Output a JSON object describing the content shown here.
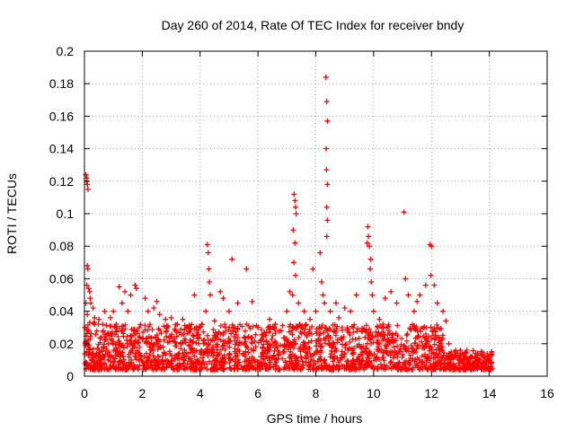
{
  "chart_data": {
    "type": "scatter",
    "title": "Day 260 of 2014, Rate Of TEC Index for receiver bndy",
    "xlabel": "GPS time / hours",
    "ylabel": "ROTI / TECUs",
    "xlim": [
      0,
      16
    ],
    "ylim": [
      0,
      0.2
    ],
    "grid": true,
    "marker": "+",
    "color": "#ff0000",
    "x_ticks": [
      0,
      2,
      4,
      6,
      8,
      10,
      12,
      14,
      16
    ],
    "y_ticks": [
      0,
      0.02,
      0.04,
      0.06,
      0.08,
      0.1,
      0.12,
      0.14,
      0.16,
      0.18,
      0.2
    ],
    "x_tick_labels": [
      "0",
      "2",
      "4",
      "6",
      "8",
      "10",
      "12",
      "14",
      "16"
    ],
    "y_tick_labels": [
      "0",
      "0.02",
      "0.04",
      "0.06",
      "0.08",
      "0.1",
      "0.12",
      "0.14",
      "0.16",
      "0.18",
      "0.2"
    ],
    "series": [
      {
        "name": "ROTI",
        "points": [
          [
            0.05,
            0.124
          ],
          [
            0.08,
            0.122
          ],
          [
            0.1,
            0.118
          ],
          [
            0.12,
            0.115
          ],
          [
            0.07,
            0.12
          ],
          [
            0.1,
            0.068
          ],
          [
            0.12,
            0.066
          ],
          [
            0.08,
            0.056
          ],
          [
            0.15,
            0.054
          ],
          [
            0.18,
            0.052
          ],
          [
            0.2,
            0.048
          ],
          [
            0.22,
            0.045
          ],
          [
            0.05,
            0.045
          ],
          [
            0.1,
            0.038
          ],
          [
            0.3,
            0.042
          ],
          [
            0.35,
            0.036
          ],
          [
            0.02,
            0.03
          ],
          [
            0.15,
            0.028
          ],
          [
            0.5,
            0.035
          ],
          [
            0.7,
            0.04
          ],
          [
            0.9,
            0.036
          ],
          [
            1.1,
            0.032
          ],
          [
            1.3,
            0.045
          ],
          [
            1.5,
            0.04
          ],
          [
            1.75,
            0.056
          ],
          [
            1.8,
            0.054
          ],
          [
            1.6,
            0.05
          ],
          [
            1.4,
            0.052
          ],
          [
            1.2,
            0.055
          ],
          [
            1.0,
            0.04
          ],
          [
            2.1,
            0.048
          ],
          [
            2.2,
            0.04
          ],
          [
            2.4,
            0.042
          ],
          [
            2.5,
            0.046
          ],
          [
            2.6,
            0.038
          ],
          [
            2.8,
            0.035
          ],
          [
            3.0,
            0.036
          ],
          [
            3.2,
            0.032
          ],
          [
            3.4,
            0.035
          ],
          [
            3.6,
            0.03
          ],
          [
            3.8,
            0.05
          ],
          [
            4.0,
            0.03
          ],
          [
            4.25,
            0.081
          ],
          [
            4.28,
            0.076
          ],
          [
            4.3,
            0.066
          ],
          [
            4.32,
            0.058
          ],
          [
            4.35,
            0.05
          ],
          [
            4.2,
            0.04
          ],
          [
            4.5,
            0.034
          ],
          [
            4.7,
            0.052
          ],
          [
            4.8,
            0.048
          ],
          [
            5.0,
            0.04
          ],
          [
            5.1,
            0.072
          ],
          [
            5.3,
            0.045
          ],
          [
            5.6,
            0.066
          ],
          [
            5.8,
            0.046
          ],
          [
            6.0,
            0.03
          ],
          [
            6.2,
            0.025
          ],
          [
            6.4,
            0.035
          ],
          [
            6.6,
            0.032
          ],
          [
            6.8,
            0.028
          ],
          [
            7.0,
            0.04
          ],
          [
            7.1,
            0.052
          ],
          [
            7.2,
            0.05
          ],
          [
            7.25,
            0.112
          ],
          [
            7.28,
            0.108
          ],
          [
            7.3,
            0.104
          ],
          [
            7.32,
            0.1
          ],
          [
            7.22,
            0.09
          ],
          [
            7.28,
            0.082
          ],
          [
            7.24,
            0.07
          ],
          [
            7.3,
            0.062
          ],
          [
            7.4,
            0.045
          ],
          [
            7.6,
            0.04
          ],
          [
            7.8,
            0.035
          ],
          [
            7.9,
            0.066
          ],
          [
            8.0,
            0.04
          ],
          [
            8.15,
            0.076
          ],
          [
            8.2,
            0.058
          ],
          [
            8.25,
            0.05
          ],
          [
            8.3,
            0.045
          ],
          [
            8.35,
            0.184
          ],
          [
            8.38,
            0.169
          ],
          [
            8.4,
            0.157
          ],
          [
            8.36,
            0.14
          ],
          [
            8.37,
            0.127
          ],
          [
            8.4,
            0.118
          ],
          [
            8.38,
            0.104
          ],
          [
            8.4,
            0.096
          ],
          [
            8.38,
            0.086
          ],
          [
            8.5,
            0.04
          ],
          [
            8.7,
            0.045
          ],
          [
            8.8,
            0.036
          ],
          [
            9.0,
            0.042
          ],
          [
            9.2,
            0.04
          ],
          [
            9.4,
            0.05
          ],
          [
            9.8,
            0.092
          ],
          [
            9.82,
            0.086
          ],
          [
            9.78,
            0.082
          ],
          [
            9.85,
            0.08
          ],
          [
            9.9,
            0.072
          ],
          [
            9.88,
            0.066
          ],
          [
            9.92,
            0.058
          ],
          [
            9.95,
            0.05
          ],
          [
            10.0,
            0.04
          ],
          [
            10.2,
            0.035
          ],
          [
            10.4,
            0.048
          ],
          [
            10.6,
            0.052
          ],
          [
            10.8,
            0.045
          ],
          [
            11.05,
            0.101
          ],
          [
            11.1,
            0.06
          ],
          [
            11.2,
            0.05
          ],
          [
            11.4,
            0.04
          ],
          [
            11.5,
            0.046
          ],
          [
            11.6,
            0.05
          ],
          [
            11.8,
            0.056
          ],
          [
            11.95,
            0.081
          ],
          [
            12.0,
            0.08
          ],
          [
            11.98,
            0.062
          ],
          [
            12.1,
            0.056
          ],
          [
            12.2,
            0.045
          ],
          [
            12.4,
            0.04
          ],
          [
            12.5,
            0.034
          ],
          [
            12.6,
            0.02
          ],
          [
            12.8,
            0.015
          ],
          [
            13.0,
            0.016
          ],
          [
            13.2,
            0.014
          ],
          [
            13.4,
            0.012
          ],
          [
            13.6,
            0.014
          ],
          [
            13.8,
            0.012
          ],
          [
            14.0,
            0.01
          ]
        ]
      }
    ]
  }
}
